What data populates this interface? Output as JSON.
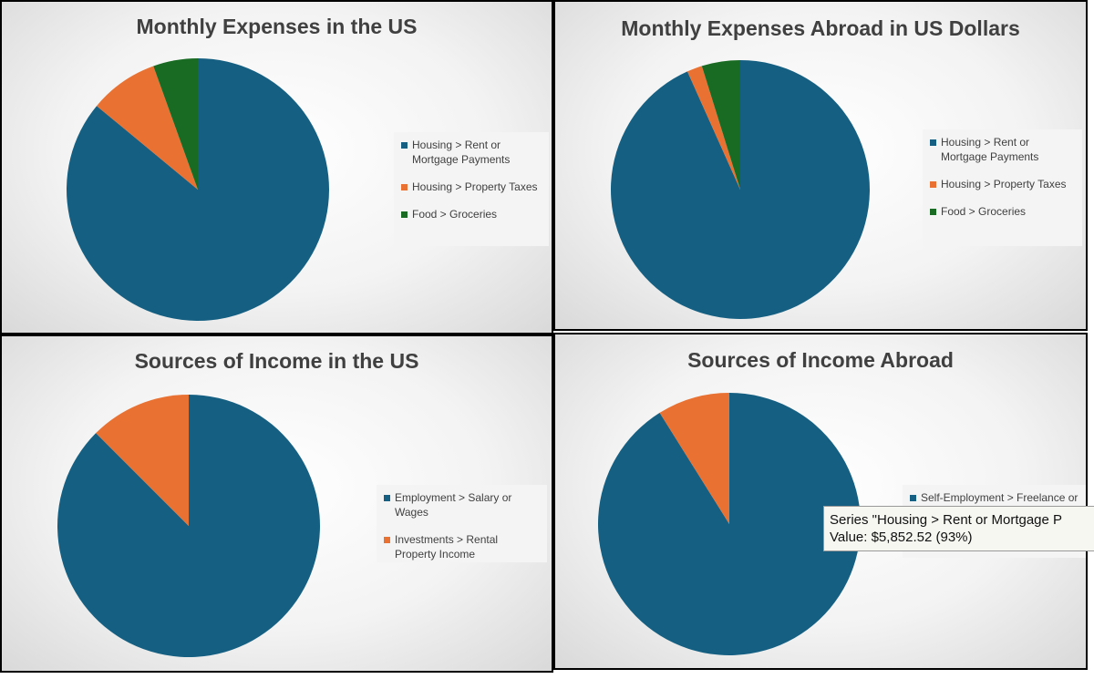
{
  "chart_data": [
    {
      "type": "pie",
      "title": "Monthly Expenses in the US",
      "categories": [
        "Housing > Rent or Mortgage Payments",
        "Housing > Property Taxes",
        "Food > Groceries"
      ],
      "values": [
        86,
        8.5,
        5.5
      ],
      "colors": [
        "#156082",
        "#e97132",
        "#196b24"
      ]
    },
    {
      "type": "pie",
      "title": "Monthly Expenses Abroad in US Dollars",
      "categories": [
        "Housing > Rent or Mortgage Payments",
        "Housing > Property Taxes",
        "Food > Groceries"
      ],
      "values": [
        93.3,
        1.9,
        4.8
      ],
      "colors": [
        "#156082",
        "#e97132",
        "#196b24"
      ]
    },
    {
      "type": "pie",
      "title": "Sources of Income in the US",
      "categories": [
        "Employment > Salary or Wages",
        "Investments > Rental Property Income"
      ],
      "values": [
        87.5,
        12.5
      ],
      "colors": [
        "#156082",
        "#e97132"
      ]
    },
    {
      "type": "pie",
      "title": "Sources of Income Abroad",
      "categories": [
        "Self-Employment > Freelance or",
        null
      ],
      "values": [
        91.1,
        8.9
      ],
      "colors": [
        "#156082",
        "#e97132"
      ]
    }
  ],
  "tooltip": {
    "lines": [
      "Series \"Housing > Rent or Mortgage P",
      "Value:  $5,852.52  (93%)"
    ]
  }
}
